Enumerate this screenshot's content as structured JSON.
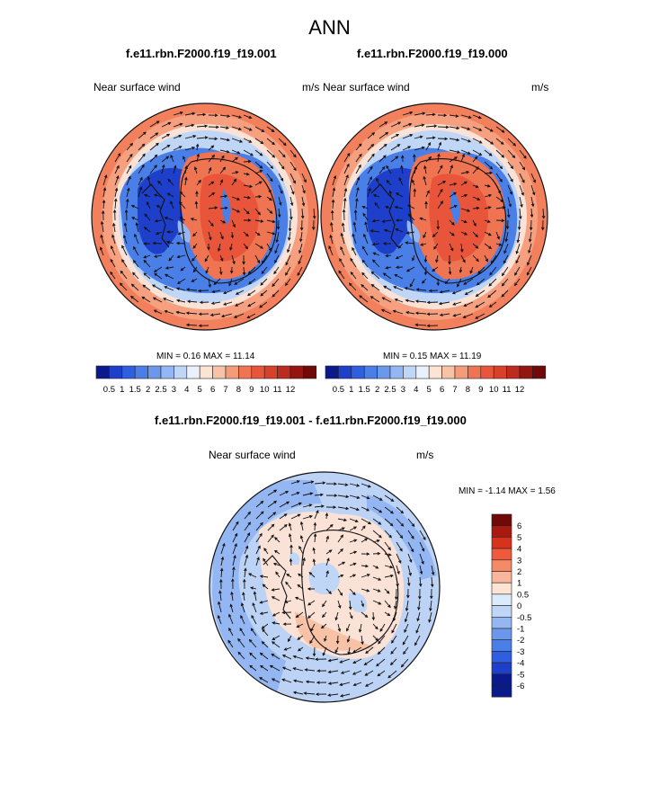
{
  "main_title": "ANN",
  "colors": {
    "abs_palette": [
      "#0a1a8c",
      "#1e3fc9",
      "#2f5fe0",
      "#4a7fe8",
      "#6c98ec",
      "#94b6f2",
      "#c0d6f7",
      "#eaf1fb",
      "#fde3d3",
      "#f8c2a6",
      "#f49c7a",
      "#ee7452",
      "#e8553a",
      "#d8402a",
      "#bd2a1e",
      "#961510",
      "#6f0a08"
    ],
    "diff_palette": [
      "#6f0a08",
      "#a9190f",
      "#d9321c",
      "#ee5a3b",
      "#f48a66",
      "#f8b79b",
      "#fde3d3",
      "#dcebfb",
      "#c0d6f7",
      "#94b6f2",
      "#6c98ec",
      "#4a7fe8",
      "#2f5fe0",
      "#1e3fc9",
      "#0a1a8c"
    ],
    "diff_background": "#b9d2f5",
    "ocean_ring": "#f0744c"
  },
  "panels": [
    {
      "case_title": "f.e11.rbn.F2000.f19_f19.001",
      "left_label": "Near surface wind",
      "units": "m/s",
      "stats": "MIN =   0.16 MAX =  11.14",
      "colorbar_labels": [
        "0.5",
        "1",
        "1.5",
        "2",
        "2.5",
        "3",
        "4",
        "5",
        "6",
        "7",
        "8",
        "9",
        "10",
        "11",
        "12"
      ]
    },
    {
      "case_title": "f.e11.rbn.F2000.f19_f19.000",
      "left_label": "Near surface wind",
      "units": "m/s",
      "stats": "MIN =   0.15 MAX =  11.19",
      "colorbar_labels": [
        "0.5",
        "1",
        "1.5",
        "2",
        "2.5",
        "3",
        "4",
        "5",
        "6",
        "7",
        "8",
        "9",
        "10",
        "11",
        "12"
      ]
    }
  ],
  "diff_panel": {
    "case_title": "f.e11.rbn.F2000.f19_f19.001 - f.e11.rbn.F2000.f19_f19.000",
    "left_label": "Near surface wind",
    "units": "m/s",
    "stats": "MIN =  -1.14 MAX =   1.56",
    "colorbar_labels": [
      "6",
      "5",
      "4",
      "3",
      "2",
      "1",
      "0.5",
      "0",
      "-0.5",
      "-1",
      "-2",
      "-3",
      "-4",
      "-5",
      "-6"
    ]
  }
}
